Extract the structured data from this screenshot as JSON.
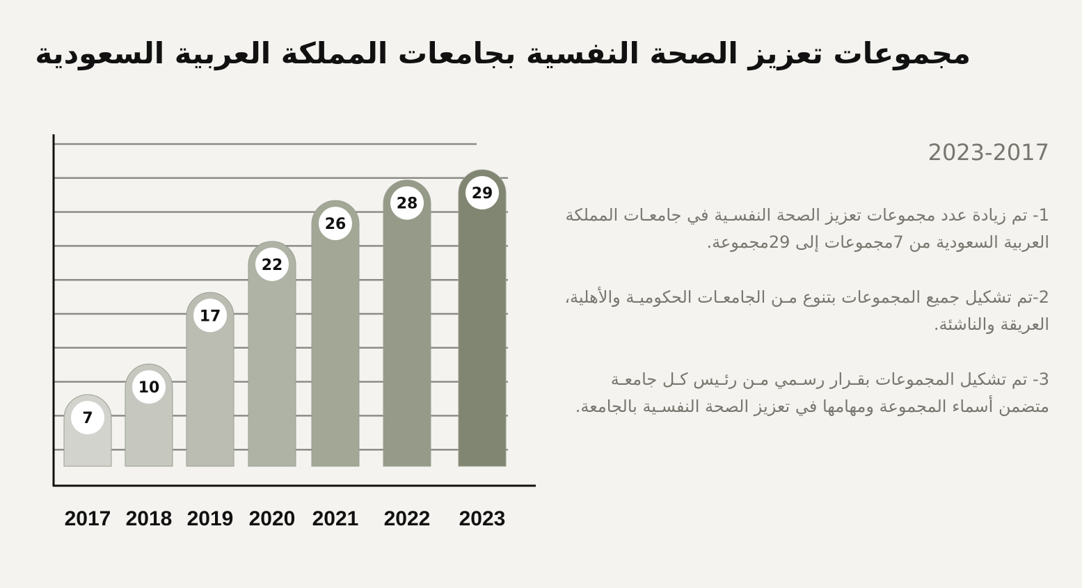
{
  "title": "مجموعات تعزيز الصحة النفسية بجامعات المملكة العربية السعودية",
  "period": "2023-2017",
  "points": [
    "1- تم زيادة عدد مجموعات تعزيز الصحة النفسـية في جامعـات المملكة العربية السعودية من 7مجموعات إلى 29مجموعة.",
    "2-تم تشكيل جميع المجموعات بتنوع مـن الجامعـات الحكوميـة والأهلية، العريقة والناشئة.",
    "3- تم تشكيل المجموعات بقـرار رسـمي مـن رئـيس كـل جامعـة متضمن أسماء المجموعة ومهامها في تعزيز الصحة النفسـية بالجامعة."
  ],
  "chart_data": {
    "type": "bar",
    "categories": [
      "2017",
      "2018",
      "2019",
      "2020",
      "2021",
      "2022",
      "2023"
    ],
    "values": [
      7,
      10,
      17,
      22,
      26,
      28,
      29
    ],
    "bar_colors": [
      "#d2d3cd",
      "#c6c8c0",
      "#bbbdb3",
      "#afb3a5",
      "#a2a796",
      "#959b88",
      "#808671"
    ],
    "grid": true,
    "title": "",
    "xlabel": "",
    "ylabel": ""
  }
}
